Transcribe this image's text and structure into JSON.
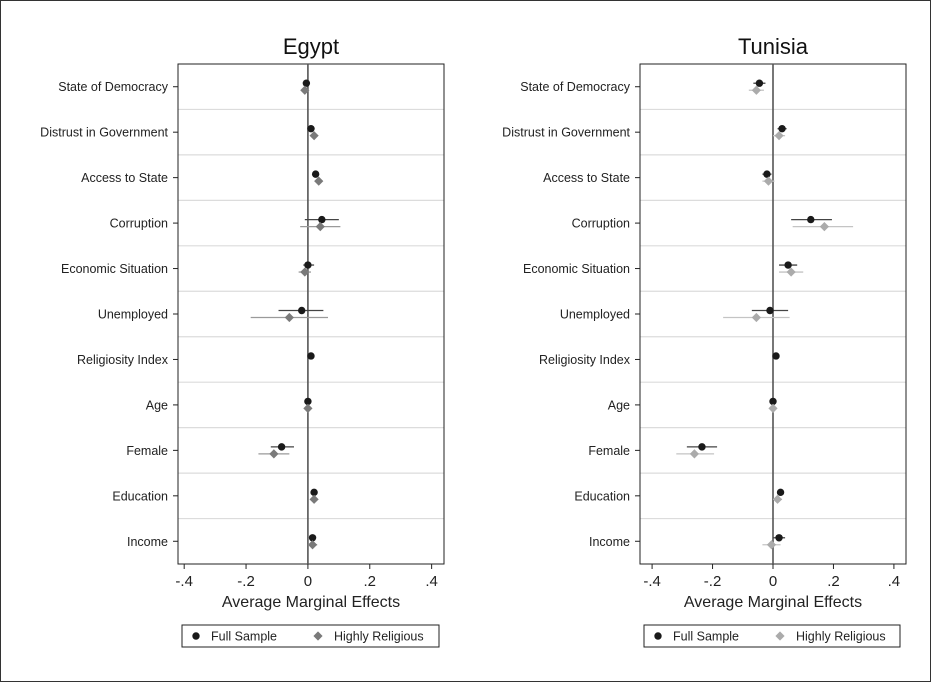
{
  "chart_data": [
    {
      "type": "scatter",
      "title": "Egypt",
      "xlabel": "Average Marginal Effects",
      "ylabel": "",
      "xlim": [
        -0.42,
        0.44
      ],
      "xticks": [
        -0.4,
        -0.2,
        0,
        0.2,
        0.4
      ],
      "xtick_labels": [
        "-.4",
        "-.2",
        "0",
        ".2",
        ".4"
      ],
      "categories": [
        "State of Democracy",
        "Distrust in Government",
        "Access to State",
        "Corruption",
        "Economic Situation",
        "Unemployed",
        "Religiosity Index",
        "Age",
        "Female",
        "Education",
        "Income"
      ],
      "series": [
        {
          "name": "Full Sample",
          "marker": "circle",
          "color": "#1a1a1a",
          "values": [
            -0.005,
            0.01,
            0.025,
            0.045,
            0.0,
            -0.02,
            0.01,
            0.0,
            -0.085,
            0.02,
            0.015
          ],
          "ci": [
            [
              -0.015,
              0.005
            ],
            [
              0.0,
              0.02
            ],
            [
              0.015,
              0.035
            ],
            [
              -0.01,
              0.1
            ],
            [
              -0.015,
              0.02
            ],
            [
              -0.095,
              0.05
            ],
            [
              0.005,
              0.015
            ],
            [
              -0.005,
              0.005
            ],
            [
              -0.12,
              -0.045
            ],
            [
              0.012,
              0.028
            ],
            [
              0.005,
              0.025
            ]
          ]
        },
        {
          "name": "Highly Religious",
          "marker": "diamond",
          "color": "#7a7a7a",
          "values": [
            -0.01,
            0.02,
            0.035,
            0.04,
            -0.01,
            -0.06,
            null,
            0.0,
            -0.11,
            0.02,
            0.015
          ],
          "ci": [
            [
              -0.02,
              0.0
            ],
            [
              0.01,
              0.03
            ],
            [
              0.025,
              0.045
            ],
            [
              -0.025,
              0.105
            ],
            [
              -0.03,
              0.01
            ],
            [
              -0.185,
              0.065
            ],
            null,
            [
              -0.005,
              0.005
            ],
            [
              -0.16,
              -0.06
            ],
            [
              0.012,
              0.028
            ],
            [
              0.0,
              0.03
            ]
          ]
        }
      ],
      "legend": {
        "position": "bottom",
        "items": [
          "Full Sample",
          "Highly Religious"
        ]
      },
      "grid": true
    },
    {
      "type": "scatter",
      "title": "Tunisia",
      "xlabel": "Average Marginal Effects",
      "ylabel": "",
      "xlim": [
        -0.44,
        0.44
      ],
      "xticks": [
        -0.4,
        -0.2,
        0,
        0.2,
        0.4
      ],
      "xtick_labels": [
        "-.4",
        "-.2",
        "0",
        ".2",
        ".4"
      ],
      "categories": [
        "State of Democracy",
        "Distrust in Government",
        "Access to State",
        "Corruption",
        "Economic Situation",
        "Unemployed",
        "Religiosity Index",
        "Age",
        "Female",
        "Education",
        "Income"
      ],
      "series": [
        {
          "name": "Full Sample",
          "marker": "circle",
          "color": "#1a1a1a",
          "values": [
            -0.045,
            0.03,
            -0.02,
            0.125,
            0.05,
            -0.01,
            0.01,
            0.0,
            -0.235,
            0.025,
            0.02
          ],
          "ci": [
            [
              -0.065,
              -0.025
            ],
            [
              0.015,
              0.045
            ],
            [
              -0.035,
              -0.005
            ],
            [
              0.06,
              0.195
            ],
            [
              0.02,
              0.08
            ],
            [
              -0.07,
              0.05
            ],
            [
              0.005,
              0.015
            ],
            [
              -0.005,
              0.005
            ],
            [
              -0.285,
              -0.185
            ],
            [
              0.015,
              0.035
            ],
            [
              0.0,
              0.04
            ]
          ]
        },
        {
          "name": "Highly Religious",
          "marker": "diamond",
          "color": "#ababab",
          "values": [
            -0.055,
            0.02,
            -0.015,
            0.17,
            0.06,
            -0.055,
            null,
            0.0,
            -0.26,
            0.015,
            -0.005
          ],
          "ci": [
            [
              -0.08,
              -0.03
            ],
            [
              0.0,
              0.04
            ],
            [
              -0.035,
              0.005
            ],
            [
              0.065,
              0.265
            ],
            [
              0.02,
              0.1
            ],
            [
              -0.165,
              0.055
            ],
            null,
            [
              -0.005,
              0.005
            ],
            [
              -0.32,
              -0.195
            ],
            [
              0.0,
              0.03
            ],
            [
              -0.035,
              0.025
            ]
          ]
        }
      ],
      "legend": {
        "position": "bottom",
        "items": [
          "Full Sample",
          "Highly Religious"
        ]
      },
      "grid": true
    }
  ]
}
